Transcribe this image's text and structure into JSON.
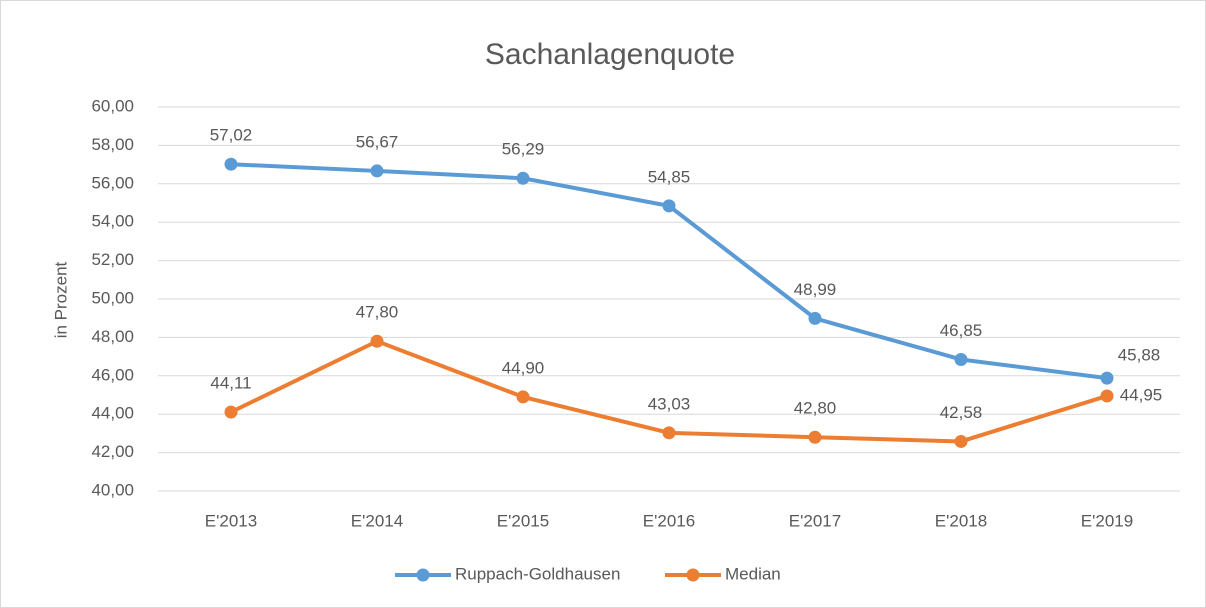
{
  "chart_data": {
    "type": "line",
    "title": "Sachanlagenquote",
    "y_label": "in Prozent",
    "categories": [
      "E'2013",
      "E'2014",
      "E'2015",
      "E'2016",
      "E'2017",
      "E'2018",
      "E'2019"
    ],
    "series": [
      {
        "name": "Ruppach-Goldhausen",
        "color": "#5b9bd5",
        "values": [
          57.02,
          56.67,
          56.29,
          54.85,
          48.99,
          46.85,
          45.88
        ],
        "value_labels": [
          "57,02",
          "56,67",
          "56,29",
          "54,85",
          "48,99",
          "46,85",
          "45,88"
        ]
      },
      {
        "name": "Median",
        "color": "#ed7d31",
        "values": [
          44.11,
          47.8,
          44.9,
          43.03,
          42.8,
          42.58,
          44.95
        ],
        "value_labels": [
          "44,11",
          "47,80",
          "44,90",
          "43,03",
          "42,80",
          "42,58",
          "44,95"
        ]
      }
    ],
    "ylim": [
      40,
      60
    ],
    "yticks": [
      {
        "value": 40,
        "label": "40,00"
      },
      {
        "value": 42,
        "label": "42,00"
      },
      {
        "value": 44,
        "label": "44,00"
      },
      {
        "value": 46,
        "label": "46,00"
      },
      {
        "value": 48,
        "label": "48,00"
      },
      {
        "value": 50,
        "label": "50,00"
      },
      {
        "value": 52,
        "label": "52,00"
      },
      {
        "value": 54,
        "label": "54,00"
      },
      {
        "value": 56,
        "label": "56,00"
      },
      {
        "value": 58,
        "label": "58,00"
      },
      {
        "value": 60,
        "label": "60,00"
      }
    ],
    "grid": true,
    "legend": "bottom"
  }
}
